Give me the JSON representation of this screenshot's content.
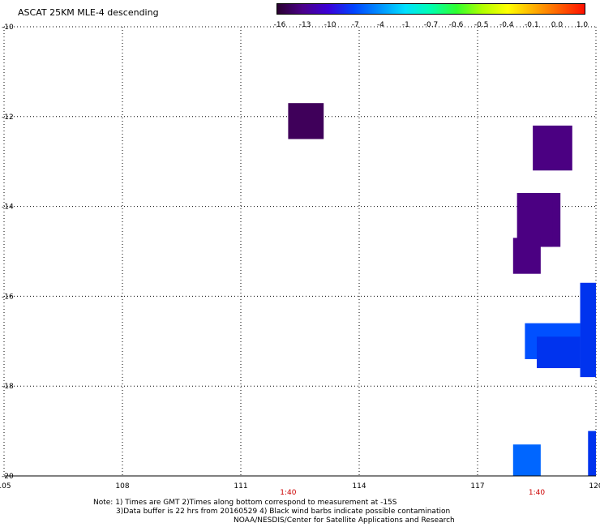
{
  "title": "ASCAT 25KM MLE-4 descending",
  "colorbar": {
    "labels": [
      "-16",
      "-13",
      "-10",
      "-7",
      "-4",
      "-1",
      "-0.7",
      "-0.6",
      "-0.5",
      "-0.4",
      "-0.1",
      "0.0",
      "1.0"
    ],
    "colors": [
      "#2a0030",
      "#4b008a",
      "#3a00d8",
      "#0044ff",
      "#0090ff",
      "#00e0ff",
      "#00ffb0",
      "#30ff30",
      "#b0ff00",
      "#ffff00",
      "#ffb000",
      "#ff6000",
      "#ff1000"
    ]
  },
  "map": {
    "lon_ticks": [
      "105",
      "108",
      "111",
      "114",
      "117",
      "120"
    ],
    "lat_ticks": [
      "-10",
      "-12",
      "-14",
      "-16",
      "-18",
      "-20"
    ],
    "lon_range": [
      105,
      120
    ],
    "lat_range": [
      -10,
      -20
    ],
    "time_labels": [
      {
        "text": "1:40",
        "lon": 112.2
      },
      {
        "text": "1:40",
        "lon": 118.5
      }
    ],
    "time_color": "#cc0000",
    "swaths": [
      {
        "lon": [
          112.2,
          113.1
        ],
        "lat": [
          -11.7,
          -12.5
        ],
        "color": "#3f005a"
      },
      {
        "lon": [
          118.4,
          119.4
        ],
        "lat": [
          -12.2,
          -13.2
        ],
        "color": "#4b0082"
      },
      {
        "lon": [
          118.0,
          119.1
        ],
        "lat": [
          -13.7,
          -14.9
        ],
        "color": "#4b0082"
      },
      {
        "lon": [
          118.1,
          118.9
        ],
        "lat": [
          -13.7,
          -14.9
        ],
        "color": "#4b0082"
      },
      {
        "lon": [
          117.9,
          118.6
        ],
        "lat": [
          -14.7,
          -15.5
        ],
        "color": "#4b0082"
      },
      {
        "lon": [
          118.2,
          119.6
        ],
        "lat": [
          -16.6,
          -17.4
        ],
        "color": "#0050ff"
      },
      {
        "lon": [
          118.5,
          119.6
        ],
        "lat": [
          -16.9,
          -17.6
        ],
        "color": "#0033ee"
      },
      {
        "lon": [
          119.6,
          120.0
        ],
        "lat": [
          -15.7,
          -17.8
        ],
        "color": "#0033ee"
      },
      {
        "lon": [
          117.9,
          118.6
        ],
        "lat": [
          -19.3,
          -20.0
        ],
        "color": "#0066ff"
      },
      {
        "lon": [
          119.8,
          120.0
        ],
        "lat": [
          -19.0,
          -20.0
        ],
        "color": "#0033ee"
      }
    ]
  },
  "notes": [
    "Note: 1) Times are GMT 2)Times along bottom correspond to measurement at -15S",
    "3)Data buffer is 22 hrs from 20160529 4) Black wind barbs indicate possible contamination",
    "NOAA/NESDIS/Center for Satellite Applications and Research"
  ]
}
